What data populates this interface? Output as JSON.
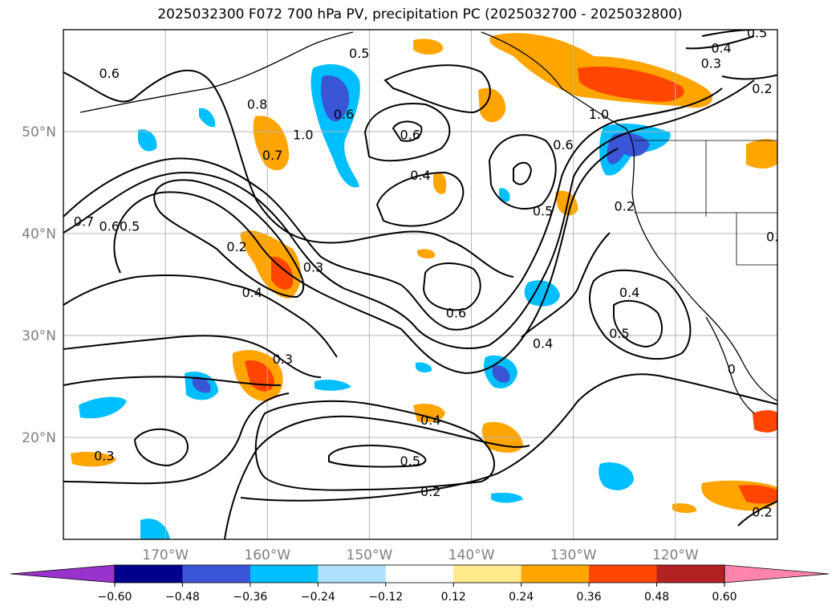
{
  "chart_data": {
    "type": "map-contour",
    "title": "2025032300 F072 700 hPa PV, precipitation PC (2025032700 - 2025032800)",
    "projection": "cylindrical",
    "lon_range": [
      -180,
      -110
    ],
    "lat_range": [
      10,
      60
    ],
    "grid": true,
    "lon_ticks": [
      -170,
      -160,
      -150,
      -140,
      -130,
      -120
    ],
    "lon_tick_labels": [
      "170°W",
      "160°W",
      "150°W",
      "140°W",
      "130°W",
      "120°W"
    ],
    "lat_ticks": [
      20,
      30,
      40,
      50
    ],
    "lat_tick_labels": [
      "20°N",
      "30°N",
      "40°N",
      "50°N"
    ],
    "colorbar": {
      "orientation": "horizontal",
      "extend": "both",
      "boundaries": [
        -0.6,
        -0.48,
        -0.36,
        -0.24,
        -0.12,
        0.12,
        0.24,
        0.36,
        0.48,
        0.6
      ],
      "tick_labels": [
        "−0.60",
        "−0.48",
        "−0.36",
        "−0.24",
        "−0.12",
        "0.12",
        "0.24",
        "0.36",
        "0.48",
        "0.60"
      ],
      "colors": [
        "#9932cc",
        "#00008b",
        "#3a56d6",
        "#00bfff",
        "#ade0fa",
        "#ffffff",
        "#ffe98a",
        "#ffa500",
        "#ff4500",
        "#b22222",
        "#ff85ad"
      ]
    },
    "contour_labels": [
      {
        "text": "0.6",
        "lon": -175.5,
        "lat": 55.5
      },
      {
        "text": "0.7",
        "lon": -178,
        "lat": 41
      },
      {
        "text": "0.6",
        "lon": -175.5,
        "lat": 40.5
      },
      {
        "text": "0.5",
        "lon": -173.5,
        "lat": 40.5
      },
      {
        "text": "0.2",
        "lon": -163,
        "lat": 38.5
      },
      {
        "text": "0.3",
        "lon": -155.5,
        "lat": 36.5
      },
      {
        "text": "0.4",
        "lon": -161.5,
        "lat": 34
      },
      {
        "text": "0.8",
        "lon": -161,
        "lat": 52.5
      },
      {
        "text": "1.0",
        "lon": -156.5,
        "lat": 49.5
      },
      {
        "text": "0.7",
        "lon": -159.5,
        "lat": 47.5
      },
      {
        "text": "0.6",
        "lon": -152.5,
        "lat": 51.5
      },
      {
        "text": "0.5",
        "lon": -151,
        "lat": 57.5
      },
      {
        "text": "0.6",
        "lon": -146,
        "lat": 49.5
      },
      {
        "text": "0.4",
        "lon": -145,
        "lat": 45.5
      },
      {
        "text": "0.6",
        "lon": -131,
        "lat": 48.5
      },
      {
        "text": "0.5",
        "lon": -133,
        "lat": 42
      },
      {
        "text": "1.0",
        "lon": -127.5,
        "lat": 51.5
      },
      {
        "text": "0.2",
        "lon": -125,
        "lat": 42.5
      },
      {
        "text": "0.4",
        "lon": -115.5,
        "lat": 58
      },
      {
        "text": "0.3",
        "lon": -116.5,
        "lat": 56.5
      },
      {
        "text": "0.5",
        "lon": -112,
        "lat": 59.5
      },
      {
        "text": "0.2",
        "lon": -111.5,
        "lat": 54
      },
      {
        "text": "0.6",
        "lon": -141.5,
        "lat": 32
      },
      {
        "text": "0.4",
        "lon": -124.5,
        "lat": 34
      },
      {
        "text": "0.5",
        "lon": -125.5,
        "lat": 30
      },
      {
        "text": "0.4",
        "lon": -133,
        "lat": 29
      },
      {
        "text": "0.3",
        "lon": -158.5,
        "lat": 27.5
      },
      {
        "text": "0.4",
        "lon": -144,
        "lat": 21.5
      },
      {
        "text": "0.5",
        "lon": -146,
        "lat": 17.5
      },
      {
        "text": "0.2",
        "lon": -144,
        "lat": 14.5
      },
      {
        "text": "0.3",
        "lon": -176,
        "lat": 18
      },
      {
        "text": "0.2",
        "lon": -111.5,
        "lat": 12.5
      },
      {
        "text": "0",
        "lon": -114.5,
        "lat": 26.5
      },
      {
        "text": "0.",
        "lon": -110.5,
        "lat": 39.5
      }
    ]
  }
}
